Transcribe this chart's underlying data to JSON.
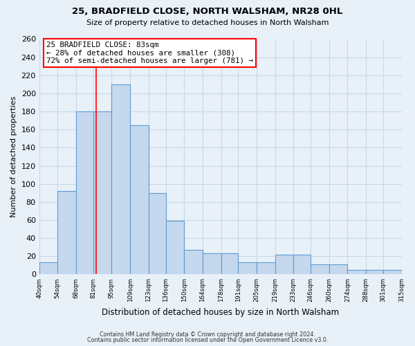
{
  "title": "25, BRADFIELD CLOSE, NORTH WALSHAM, NR28 0HL",
  "subtitle": "Size of property relative to detached houses in North Walsham",
  "xlabel": "Distribution of detached houses by size in North Walsham",
  "ylabel": "Number of detached properties",
  "bin_edges": [
    40,
    54,
    68,
    81,
    95,
    109,
    123,
    136,
    150,
    164,
    178,
    191,
    205,
    219,
    233,
    246,
    260,
    274,
    288,
    301,
    315
  ],
  "bar_heights": [
    13,
    92,
    180,
    180,
    210,
    165,
    90,
    59,
    27,
    23,
    23,
    13,
    13,
    22,
    22,
    11,
    11,
    5,
    5,
    5
  ],
  "bar_color": "#c5d8ed",
  "bar_edge_color": "#5b9bd5",
  "grid_color": "#c8d8e8",
  "bg_color": "#e8f0f8",
  "property_line_x": 83,
  "property_line_color": "red",
  "annotation_line1": "25 BRADFIELD CLOSE: 83sqm",
  "annotation_line2": "← 28% of detached houses are smaller (308)",
  "annotation_line3": "72% of semi-detached houses are larger (781) →",
  "annotation_box_color": "white",
  "annotation_box_edge_color": "red",
  "ylim_max": 260,
  "yticks": [
    0,
    20,
    40,
    60,
    80,
    100,
    120,
    140,
    160,
    180,
    200,
    220,
    240,
    260
  ],
  "tick_labels": [
    "40sqm",
    "54sqm",
    "68sqm",
    "81sqm",
    "95sqm",
    "109sqm",
    "123sqm",
    "136sqm",
    "150sqm",
    "164sqm",
    "178sqm",
    "191sqm",
    "205sqm",
    "219sqm",
    "233sqm",
    "246sqm",
    "260sqm",
    "274sqm",
    "288sqm",
    "301sqm",
    "315sqm"
  ],
  "footer_line1": "Contains HM Land Registry data © Crown copyright and database right 2024.",
  "footer_line2": "Contains public sector information licensed under the Open Government Licence v3.0."
}
